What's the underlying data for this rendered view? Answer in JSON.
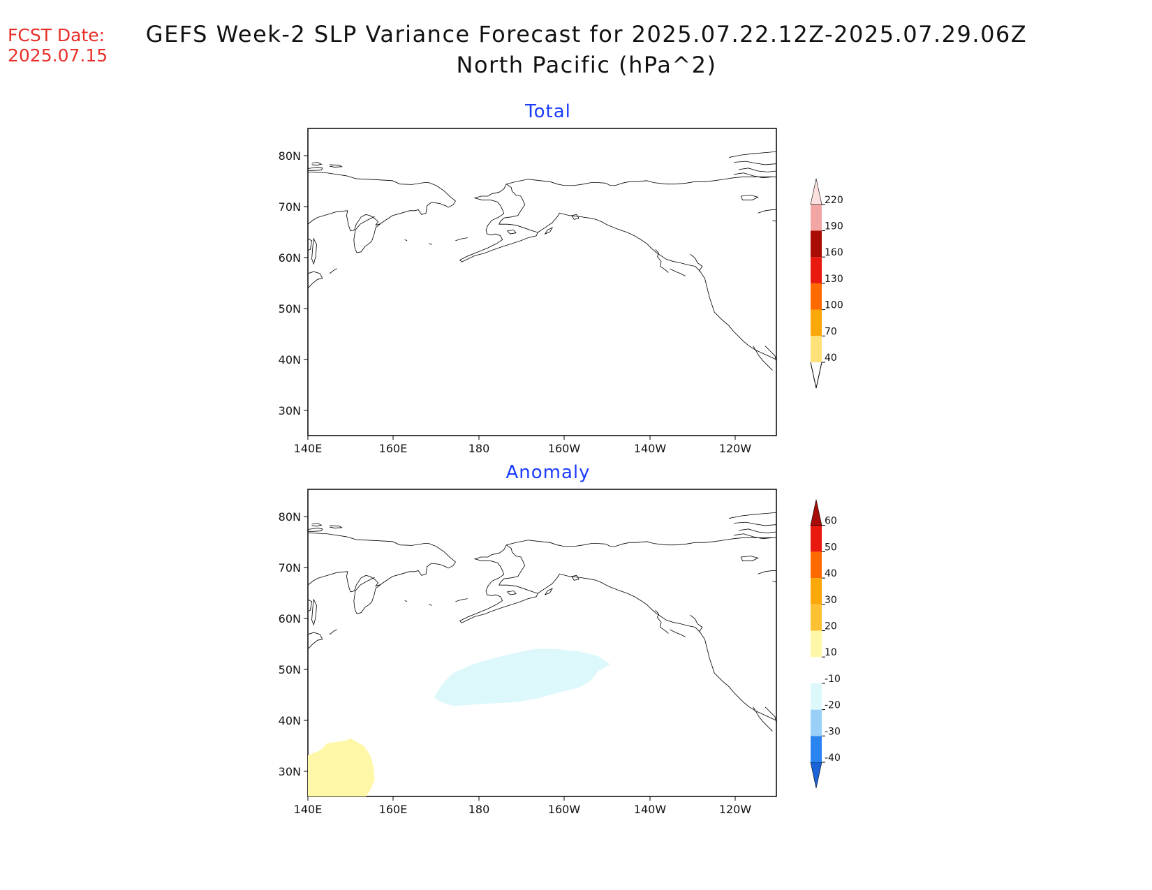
{
  "fcst_date": {
    "label": "FCST Date:",
    "value": "2025.07.15"
  },
  "title": {
    "line1": "GEFS Week-2 SLP Variance Forecast for 2025.07.22.12Z-2025.07.29.06Z",
    "line2": "North Pacific (hPa^2)"
  },
  "map_axes": {
    "lat_ticks": [
      "80N",
      "70N",
      "60N",
      "50N",
      "40N",
      "30N"
    ],
    "lon_ticks": [
      "140E",
      "160E",
      "180",
      "160W",
      "140W",
      "120W"
    ]
  },
  "panels": [
    {
      "title": "Total",
      "colorbar": {
        "levels": [
          "40",
          "70",
          "100",
          "130",
          "160",
          "190",
          "220"
        ],
        "colors": [
          "#fde27a",
          "#fca70a",
          "#ff6a00",
          "#e8190e",
          "#a90c05",
          "#f2a6a3",
          "#fbe0df"
        ]
      }
    },
    {
      "title": "Anomaly",
      "colorbar": {
        "levels": [
          "-40",
          "-30",
          "-20",
          "-10",
          "10",
          "20",
          "30",
          "40",
          "50",
          "60"
        ],
        "colors": [
          "#1a64d8",
          "#2a84f0",
          "#9ad0f7",
          "#dcf8fb",
          "#ffffff",
          "#fff7a8",
          "#fcc033",
          "#fca70a",
          "#ff6a00",
          "#e8190e",
          "#a60c08"
        ]
      },
      "shaded_regions": [
        {
          "label": "-10 to -20",
          "color": "#dcf8fb"
        },
        {
          "label": "10 to 20",
          "color": "#fff7a8"
        }
      ]
    }
  ]
}
